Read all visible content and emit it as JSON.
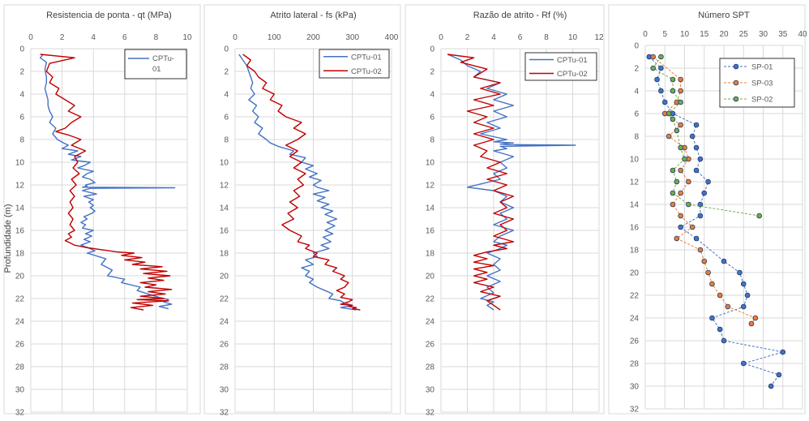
{
  "colors": {
    "blue": "#4472C4",
    "red": "#C00000",
    "orange": "#ED7D31",
    "green": "#70AD47",
    "navy": "#203864",
    "grid": "#D9D9D9"
  },
  "chart_data": [
    {
      "type": "line",
      "title": "Resistencia de ponta - qt (MPa)",
      "xlabel": "",
      "ylabel": "Profundidade (m)",
      "xlim": [
        0,
        10
      ],
      "xticks": [
        0,
        2,
        4,
        6,
        8,
        10
      ],
      "ylim": [
        0,
        32
      ],
      "yticks": [
        0,
        2,
        4,
        6,
        8,
        10,
        12,
        14,
        16,
        18,
        20,
        22,
        24,
        26,
        28,
        30,
        32
      ],
      "grid": true,
      "legend": {
        "position": "top-right",
        "entries": [
          "CPTu-",
          "01"
        ]
      },
      "series": [
        {
          "name": "CPTu-01",
          "color": "#4472C4",
          "marker": "none",
          "x": [
            0.8,
            0.6,
            1.0,
            0.9,
            1.0,
            1.0,
            0.9,
            1.0,
            1.1,
            1.1,
            1.2,
            1.4,
            1.2,
            1.6,
            1.4,
            1.7,
            2.1,
            2.4,
            2.0,
            3.0,
            2.4,
            3.2,
            2.6,
            3.8,
            3.4,
            3.0,
            4.0,
            3.6,
            3.3,
            3.8,
            4.1,
            3.5,
            3.6,
            3.3,
            9.2,
            3.8,
            3.3,
            4.2,
            3.4,
            4.0,
            3.7,
            4.0,
            3.8,
            4.1,
            3.9,
            3.4,
            3.6,
            3.2,
            3.5,
            3.3,
            4.0,
            3.5,
            3.9,
            3.4,
            3.8,
            3.2,
            3.6,
            4.1,
            3.6,
            4.8,
            4.5,
            5.2,
            4.9,
            6.0,
            5.8,
            7.0,
            6.8,
            7.5,
            8.2,
            8.8,
            8.5,
            9.0,
            8.2,
            8.8
          ],
          "y": [
            0.5,
            0.8,
            1.2,
            1.8,
            2.5,
            3.0,
            3.5,
            4.0,
            4.5,
            5.0,
            5.5,
            6.0,
            6.5,
            7.0,
            7.5,
            8.0,
            8.3,
            8.5,
            8.8,
            9.0,
            9.3,
            9.5,
            9.8,
            10.0,
            10.3,
            10.5,
            10.8,
            11.0,
            11.3,
            11.5,
            11.8,
            12.0,
            12.1,
            12.2,
            12.25,
            12.3,
            12.5,
            12.8,
            13.0,
            13.3,
            13.5,
            13.8,
            14.0,
            14.3,
            14.5,
            14.8,
            15.0,
            15.3,
            15.5,
            15.8,
            16.0,
            16.3,
            16.5,
            16.8,
            17.0,
            17.3,
            17.5,
            17.8,
            18.0,
            18.5,
            19.0,
            19.5,
            20.0,
            20.3,
            20.6,
            21.0,
            21.3,
            21.6,
            21.9,
            22.1,
            22.3,
            22.5,
            22.7,
            22.9
          ]
        },
        {
          "name": "CPTu-02",
          "color": "#C00000",
          "marker": "none",
          "x": [
            0.6,
            2.8,
            1.2,
            1.0,
            1.4,
            1.2,
            1.8,
            1.6,
            2.2,
            2.8,
            2.4,
            3.2,
            2.6,
            2.2,
            1.6,
            2.4,
            3.2,
            2.6,
            3.5,
            2.8,
            3.0,
            2.7,
            3.1,
            2.6,
            2.9,
            2.5,
            2.8,
            2.5,
            2.7,
            2.4,
            2.7,
            2.5,
            2.8,
            2.4,
            2.6,
            2.2,
            2.5,
            2.8,
            3.5,
            4.5,
            5.5,
            6.6,
            5.8,
            7.1,
            6.0,
            7.3,
            6.5,
            8.4,
            7.0,
            8.7,
            7.2,
            8.9,
            7.5,
            8.5,
            7.0,
            8.0,
            7.3,
            9.0,
            7.5,
            8.6,
            7.0,
            8.5,
            6.8,
            8.8,
            6.5,
            7.8,
            6.4,
            7.2
          ],
          "y": [
            0.5,
            0.8,
            1.3,
            2.0,
            2.5,
            3.0,
            3.5,
            4.0,
            4.5,
            5.0,
            5.5,
            6.0,
            6.5,
            7.0,
            7.3,
            7.6,
            8.0,
            8.5,
            9.0,
            9.5,
            10.0,
            10.5,
            11.0,
            11.5,
            12.0,
            12.5,
            13.0,
            13.5,
            14.0,
            14.5,
            15.0,
            15.5,
            16.0,
            16.3,
            16.6,
            16.9,
            17.1,
            17.3,
            17.5,
            17.7,
            17.9,
            18.0,
            18.2,
            18.4,
            18.6,
            18.8,
            19.0,
            19.2,
            19.4,
            19.6,
            19.8,
            20.0,
            20.2,
            20.4,
            20.6,
            20.8,
            21.0,
            21.2,
            21.4,
            21.6,
            21.8,
            22.0,
            22.1,
            22.2,
            22.4,
            22.6,
            22.8,
            23.0
          ]
        }
      ]
    },
    {
      "type": "line",
      "title": "Atrito lateral - fs (kPa)",
      "xlabel": "",
      "ylabel": "",
      "xlim": [
        0,
        400
      ],
      "xticks": [
        0,
        100,
        200,
        300,
        400
      ],
      "ylim": [
        0,
        32
      ],
      "yticks": [
        0,
        2,
        4,
        6,
        8,
        10,
        12,
        14,
        16,
        18,
        20,
        22,
        24,
        26,
        28,
        30,
        32
      ],
      "grid": true,
      "legend": {
        "position": "top-right",
        "entries": [
          "CPTu-01",
          "CPTu-02"
        ]
      },
      "series": [
        {
          "name": "CPTu-01",
          "color": "#4472C4",
          "marker": "none",
          "x": [
            10,
            20,
            30,
            35,
            40,
            45,
            40,
            50,
            35,
            55,
            45,
            60,
            50,
            70,
            60,
            80,
            90,
            110,
            150,
            140,
            180,
            170,
            200,
            180,
            210,
            190,
            220,
            200,
            210,
            240,
            200,
            230,
            210,
            240,
            220,
            250,
            230,
            260,
            235,
            255,
            230,
            250,
            225,
            245,
            220,
            240,
            200,
            210,
            180,
            200,
            170,
            190,
            180,
            200,
            190,
            210,
            230,
            250,
            240,
            270,
            280,
            300,
            270,
            310
          ],
          "y": [
            0.5,
            1.0,
            1.5,
            2.0,
            2.5,
            3.0,
            3.5,
            4.0,
            4.5,
            5.0,
            5.5,
            6.0,
            6.5,
            7.0,
            7.5,
            8.0,
            8.3,
            8.6,
            9.0,
            9.3,
            9.6,
            10.0,
            10.3,
            10.6,
            11.0,
            11.3,
            11.6,
            12.0,
            12.2,
            12.5,
            12.8,
            13.1,
            13.4,
            13.7,
            14.0,
            14.3,
            14.6,
            15.0,
            15.3,
            15.6,
            16.0,
            16.3,
            16.6,
            17.0,
            17.3,
            17.6,
            18.0,
            18.3,
            18.6,
            19.0,
            19.3,
            19.6,
            20.0,
            20.3,
            20.6,
            21.0,
            21.3,
            21.6,
            22.0,
            22.2,
            22.4,
            22.6,
            22.8,
            23.0
          ]
        },
        {
          "name": "CPTu-02",
          "color": "#C00000",
          "marker": "none",
          "x": [
            20,
            40,
            30,
            50,
            60,
            80,
            70,
            100,
            90,
            120,
            110,
            130,
            170,
            150,
            180,
            160,
            130,
            160,
            140,
            170,
            150,
            180,
            160,
            175,
            150,
            165,
            140,
            160,
            135,
            150,
            120,
            140,
            170,
            160,
            190,
            180,
            210,
            200,
            240,
            230,
            260,
            250,
            280,
            270,
            290,
            280,
            260,
            280,
            270,
            300,
            290,
            270,
            300,
            290,
            310,
            300,
            320
          ],
          "y": [
            0.5,
            1.0,
            1.5,
            2.0,
            2.5,
            3.0,
            3.5,
            4.0,
            4.5,
            5.0,
            5.5,
            6.0,
            6.5,
            7.0,
            7.5,
            8.0,
            8.5,
            9.0,
            9.5,
            10.0,
            10.5,
            11.0,
            11.5,
            12.0,
            12.5,
            13.0,
            13.5,
            14.0,
            14.5,
            15.0,
            15.5,
            16.0,
            16.5,
            17.0,
            17.3,
            17.6,
            18.0,
            18.3,
            18.6,
            19.0,
            19.3,
            19.6,
            20.0,
            20.3,
            20.6,
            21.0,
            21.3,
            21.6,
            21.9,
            22.1,
            22.3,
            22.5,
            22.6,
            22.7,
            22.8,
            22.9,
            23.0
          ]
        }
      ]
    },
    {
      "type": "line",
      "title": "Razão de atrito - Rf (%)",
      "xlabel": "",
      "ylabel": "",
      "xlim": [
        0,
        12
      ],
      "xticks": [
        0,
        2,
        4,
        6,
        8,
        10,
        12
      ],
      "ylim": [
        0,
        32
      ],
      "yticks": [
        0,
        2,
        4,
        6,
        8,
        10,
        12,
        14,
        16,
        18,
        20,
        22,
        24,
        26,
        28,
        30,
        32
      ],
      "grid": true,
      "legend": {
        "position": "top-right",
        "entries": [
          "CPTu-01",
          "CPTu-02"
        ]
      },
      "series": [
        {
          "name": "CPTu-01",
          "color": "#4472C4",
          "marker": "none",
          "x": [
            0.5,
            1.5,
            2.0,
            3.0,
            2.5,
            4.5,
            3.5,
            5.0,
            4.0,
            5.5,
            4.0,
            5.0,
            3.5,
            4.5,
            3.0,
            5.0,
            4.0,
            5.5,
            4.5,
            5.0,
            10.2,
            4.5,
            5.0,
            4.0,
            5.5,
            4.5,
            5.0,
            4.0,
            4.5,
            2.0,
            4.0,
            5.0,
            4.5,
            5.5,
            4.5,
            5.0,
            4.0,
            5.5,
            4.5,
            4.0,
            5.0,
            4.5,
            3.5,
            4.5,
            4.0,
            4.5,
            3.5,
            4.5,
            3.5,
            4.0,
            3.0,
            4.0,
            3.5,
            4.0
          ],
          "y": [
            0.5,
            1.0,
            1.5,
            2.0,
            2.5,
            3.0,
            3.5,
            4.0,
            4.5,
            5.0,
            5.5,
            6.0,
            6.5,
            7.0,
            7.5,
            8.0,
            8.2,
            8.3,
            8.4,
            8.45,
            8.5,
            8.6,
            8.8,
            9.0,
            9.5,
            10.0,
            10.5,
            11.0,
            11.5,
            12.2,
            12.5,
            13.0,
            13.5,
            14.0,
            14.5,
            15.0,
            15.5,
            16.0,
            16.5,
            17.0,
            17.3,
            17.6,
            18.0,
            18.5,
            19.0,
            19.5,
            20.0,
            20.5,
            21.0,
            21.5,
            22.0,
            22.3,
            22.6,
            23.0
          ]
        },
        {
          "name": "CPTu-02",
          "color": "#C00000",
          "marker": "none",
          "x": [
            0.5,
            2.5,
            1.5,
            3.5,
            2.5,
            4.5,
            3.0,
            4.5,
            2.5,
            4.0,
            2.0,
            3.5,
            2.5,
            4.0,
            2.5,
            4.0,
            2.5,
            3.5,
            3.0,
            4.5,
            3.5,
            5.0,
            3.5,
            5.0,
            4.0,
            5.5,
            4.5,
            5.0,
            4.0,
            5.5,
            4.5,
            5.0,
            4.0,
            5.5,
            4.0,
            5.0,
            3.5,
            2.5,
            3.5,
            2.5,
            4.0,
            2.5,
            3.5,
            2.5,
            3.5,
            2.5,
            4.0,
            3.0,
            4.5,
            3.5,
            4.5
          ],
          "y": [
            0.5,
            0.8,
            1.2,
            1.8,
            2.5,
            3.0,
            3.5,
            4.0,
            4.5,
            5.0,
            5.5,
            6.0,
            6.5,
            7.0,
            7.5,
            8.0,
            8.5,
            9.0,
            9.5,
            10.0,
            10.5,
            11.0,
            11.5,
            12.0,
            12.5,
            13.0,
            13.5,
            14.0,
            14.5,
            15.0,
            15.5,
            16.0,
            16.5,
            17.0,
            17.3,
            17.6,
            17.9,
            18.2,
            18.5,
            18.8,
            19.1,
            19.4,
            19.7,
            20.0,
            20.3,
            20.6,
            21.0,
            21.4,
            21.8,
            22.2,
            23.0
          ]
        }
      ]
    },
    {
      "type": "scatter",
      "title": "Número SPT",
      "xlabel": "",
      "ylabel": "",
      "xlim": [
        0,
        40
      ],
      "xticks": [
        0,
        5,
        10,
        15,
        20,
        25,
        30,
        35,
        40
      ],
      "ylim": [
        0,
        32
      ],
      "yticks": [
        0,
        2,
        4,
        6,
        8,
        10,
        12,
        14,
        16,
        18,
        20,
        22,
        24,
        26,
        28,
        30,
        32
      ],
      "grid": true,
      "legend": {
        "position": "top-right",
        "entries": [
          "SP-01",
          "SP-03",
          "SP-02"
        ]
      },
      "series": [
        {
          "name": "SP-01",
          "color": "#4472C4",
          "marker": "circle",
          "line": "dashed",
          "x": [
            1,
            4,
            3,
            4,
            5,
            7,
            13,
            12,
            13,
            14,
            13,
            16,
            15,
            14,
            14,
            9,
            13,
            20,
            24,
            25,
            26,
            25,
            17,
            19,
            20,
            35,
            25,
            34,
            32
          ],
          "y": [
            1,
            2,
            3,
            4,
            5,
            6,
            7,
            8,
            9,
            10,
            11,
            12,
            13,
            14,
            15,
            16,
            17,
            19,
            20,
            21,
            22,
            23,
            24,
            25,
            26,
            27,
            28,
            29,
            30
          ]
        },
        {
          "name": "SP-03",
          "color": "#ED7D31",
          "marker": "circle",
          "line": "dashed",
          "x": [
            2,
            9,
            9,
            8,
            5,
            9,
            6,
            10,
            11,
            9,
            11,
            9,
            7,
            9,
            12,
            8,
            14,
            15,
            16,
            17,
            19,
            21,
            28,
            27
          ],
          "y": [
            1,
            3,
            4,
            5,
            6,
            7,
            8,
            9,
            10,
            11,
            12,
            13,
            14,
            15,
            16,
            17,
            18,
            19,
            20,
            21,
            22,
            23,
            24,
            24.5
          ]
        },
        {
          "name": "SP-02",
          "color": "#70AD47",
          "marker": "circle",
          "line": "dashed",
          "x": [
            4,
            2,
            7,
            7,
            9,
            6,
            7,
            8,
            9,
            10,
            7,
            8,
            7,
            11,
            29
          ],
          "y": [
            1,
            2,
            3,
            4,
            5,
            6,
            6.5,
            7.5,
            9,
            10,
            11,
            12,
            13,
            14,
            15
          ]
        }
      ]
    }
  ]
}
